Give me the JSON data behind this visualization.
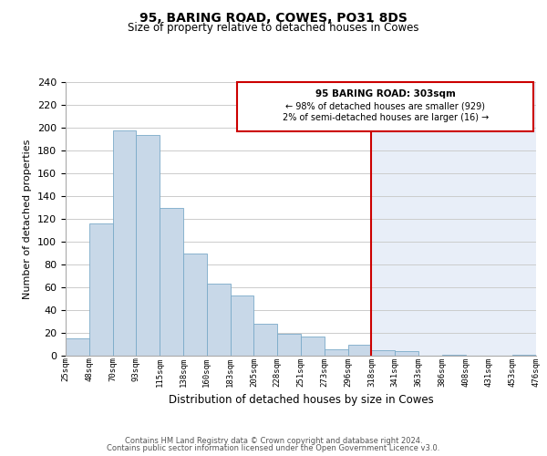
{
  "title": "95, BARING ROAD, COWES, PO31 8DS",
  "subtitle": "Size of property relative to detached houses in Cowes",
  "xlabel": "Distribution of detached houses by size in Cowes",
  "ylabel": "Number of detached properties",
  "bin_labels": [
    "25sqm",
    "48sqm",
    "70sqm",
    "93sqm",
    "115sqm",
    "138sqm",
    "160sqm",
    "183sqm",
    "205sqm",
    "228sqm",
    "251sqm",
    "273sqm",
    "296sqm",
    "318sqm",
    "341sqm",
    "363sqm",
    "386sqm",
    "408sqm",
    "431sqm",
    "453sqm",
    "476sqm"
  ],
  "bar_values": [
    15,
    116,
    198,
    194,
    130,
    90,
    63,
    53,
    28,
    19,
    17,
    6,
    10,
    5,
    4,
    0,
    1,
    0,
    0,
    1
  ],
  "bar_color_left": "#c8d8e8",
  "bar_color_right": "#c8d8ea",
  "bar_edge_color": "#7aaac8",
  "highlight_color": "#cc0000",
  "annotation_title": "95 BARING ROAD: 303sqm",
  "annotation_line1": "← 98% of detached houses are smaller (929)",
  "annotation_line2": "2% of semi-detached houses are larger (16) →",
  "annotation_box_color": "#ffffff",
  "annotation_box_edge": "#cc0000",
  "ylim": [
    0,
    240
  ],
  "yticks": [
    0,
    20,
    40,
    60,
    80,
    100,
    120,
    140,
    160,
    180,
    200,
    220,
    240
  ],
  "grid_color": "#cccccc",
  "bg_right_color": "#e8eef8",
  "plot_background": "#ffffff",
  "footer_line1": "Contains HM Land Registry data © Crown copyright and database right 2024.",
  "footer_line2": "Contains public sector information licensed under the Open Government Licence v3.0."
}
